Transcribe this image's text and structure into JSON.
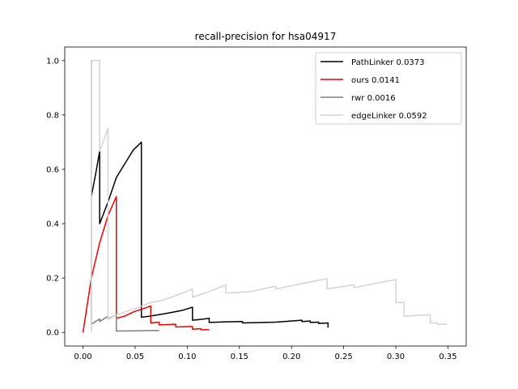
{
  "chart_data": {
    "type": "line",
    "title": "recall-precision for hsa04917",
    "xlabel": "",
    "ylabel": "",
    "xlim": [
      -0.0175,
      0.3675
    ],
    "ylim": [
      -0.05,
      1.05
    ],
    "xticks": [
      0.0,
      0.05,
      0.1,
      0.15,
      0.2,
      0.25,
      0.3,
      0.35
    ],
    "xtick_labels": [
      "0.00",
      "0.05",
      "0.10",
      "0.15",
      "0.20",
      "0.25",
      "0.30",
      "0.35"
    ],
    "yticks": [
      0.0,
      0.2,
      0.4,
      0.6,
      0.8,
      1.0
    ],
    "ytick_labels": [
      "0.0",
      "0.2",
      "0.4",
      "0.6",
      "0.8",
      "1.0"
    ],
    "grid": false,
    "legend_position": "top-right",
    "series": [
      {
        "name": "PathLinker 0.0373",
        "color": "#000000",
        "points": [
          [
            0.008,
            0.5
          ],
          [
            0.012,
            0.58
          ],
          [
            0.016,
            0.667
          ],
          [
            0.016,
            0.4
          ],
          [
            0.024,
            0.48
          ],
          [
            0.032,
            0.57
          ],
          [
            0.04,
            0.62
          ],
          [
            0.048,
            0.67
          ],
          [
            0.056,
            0.7
          ],
          [
            0.056,
            0.056
          ],
          [
            0.064,
            0.06
          ],
          [
            0.08,
            0.07
          ],
          [
            0.096,
            0.082
          ],
          [
            0.105,
            0.093
          ],
          [
            0.105,
            0.045
          ],
          [
            0.113,
            0.048
          ],
          [
            0.121,
            0.052
          ],
          [
            0.121,
            0.037
          ],
          [
            0.137,
            0.039
          ],
          [
            0.153,
            0.04
          ],
          [
            0.153,
            0.035
          ],
          [
            0.185,
            0.038
          ],
          [
            0.21,
            0.045
          ],
          [
            0.21,
            0.04
          ],
          [
            0.218,
            0.042
          ],
          [
            0.218,
            0.037
          ],
          [
            0.226,
            0.038
          ],
          [
            0.226,
            0.033
          ],
          [
            0.235,
            0.035
          ],
          [
            0.235,
            0.018
          ]
        ]
      },
      {
        "name": "ours 0.0141",
        "color": "#ee0000",
        "points": [
          [
            0.0,
            0.0
          ],
          [
            0.008,
            0.2
          ],
          [
            0.016,
            0.33
          ],
          [
            0.024,
            0.43
          ],
          [
            0.032,
            0.5
          ],
          [
            0.032,
            0.052
          ],
          [
            0.04,
            0.06
          ],
          [
            0.048,
            0.075
          ],
          [
            0.056,
            0.085
          ],
          [
            0.065,
            0.097
          ],
          [
            0.065,
            0.035
          ],
          [
            0.073,
            0.038
          ],
          [
            0.073,
            0.028
          ],
          [
            0.089,
            0.03
          ],
          [
            0.089,
            0.02
          ],
          [
            0.105,
            0.022
          ],
          [
            0.105,
            0.012
          ],
          [
            0.113,
            0.014
          ],
          [
            0.113,
            0.01
          ],
          [
            0.121,
            0.01
          ]
        ]
      },
      {
        "name": "rwr 0.0016",
        "color": "#808080",
        "points": [
          [
            0.008,
            1.0
          ],
          [
            0.008,
            0.03
          ],
          [
            0.012,
            0.04
          ],
          [
            0.016,
            0.05
          ],
          [
            0.016,
            0.04
          ],
          [
            0.024,
            0.06
          ],
          [
            0.024,
            0.05
          ],
          [
            0.032,
            0.065
          ],
          [
            0.032,
            0.005
          ],
          [
            0.05,
            0.006
          ],
          [
            0.065,
            0.007
          ],
          [
            0.073,
            0.007
          ]
        ]
      },
      {
        "name": "edgeLinker 0.0592",
        "color": "#d3d3d3",
        "points": [
          [
            0.008,
            0.0
          ],
          [
            0.008,
            1.0
          ],
          [
            0.016,
            1.0
          ],
          [
            0.016,
            0.667
          ],
          [
            0.024,
            0.75
          ],
          [
            0.024,
            0.048
          ],
          [
            0.032,
            0.065
          ],
          [
            0.048,
            0.085
          ],
          [
            0.065,
            0.11
          ],
          [
            0.073,
            0.115
          ],
          [
            0.089,
            0.135
          ],
          [
            0.105,
            0.16
          ],
          [
            0.105,
            0.13
          ],
          [
            0.121,
            0.15
          ],
          [
            0.137,
            0.175
          ],
          [
            0.137,
            0.145
          ],
          [
            0.16,
            0.15
          ],
          [
            0.185,
            0.17
          ],
          [
            0.185,
            0.16
          ],
          [
            0.21,
            0.18
          ],
          [
            0.234,
            0.198
          ],
          [
            0.234,
            0.16
          ],
          [
            0.26,
            0.175
          ],
          [
            0.26,
            0.165
          ],
          [
            0.3,
            0.195
          ],
          [
            0.3,
            0.11
          ],
          [
            0.308,
            0.11
          ],
          [
            0.308,
            0.06
          ],
          [
            0.333,
            0.065
          ],
          [
            0.333,
            0.035
          ],
          [
            0.34,
            0.035
          ],
          [
            0.34,
            0.03
          ],
          [
            0.349,
            0.03
          ]
        ]
      }
    ]
  }
}
